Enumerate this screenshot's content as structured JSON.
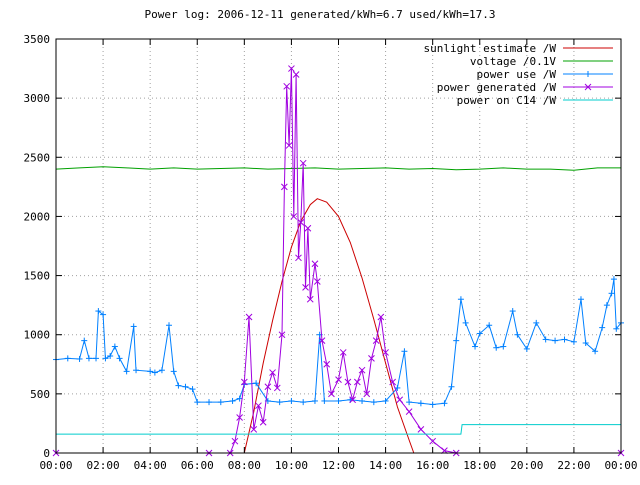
{
  "chart_data": {
    "type": "line",
    "title": "Power log: 2006-12-11 generated/kWh=6.7 used/kWh=17.3",
    "xlabel": "",
    "ylabel": "",
    "xlim": [
      0,
      24
    ],
    "ylim": [
      0,
      3500
    ],
    "x_ticks": [
      "00:00",
      "02:00",
      "04:00",
      "06:00",
      "08:00",
      "10:00",
      "12:00",
      "14:00",
      "16:00",
      "18:00",
      "20:00",
      "22:00",
      "00:00"
    ],
    "y_ticks": [
      "0",
      "500",
      "1000",
      "1500",
      "2000",
      "2500",
      "3000",
      "3500"
    ],
    "grid": true,
    "legend_position": "top-right",
    "series": [
      {
        "name": "sunlight estimate /W",
        "color": "#cc0000",
        "marker": "none",
        "points": [
          [
            8.0,
            0
          ],
          [
            8.4,
            350
          ],
          [
            8.8,
            760
          ],
          [
            9.2,
            1120
          ],
          [
            9.6,
            1450
          ],
          [
            10.0,
            1740
          ],
          [
            10.4,
            1960
          ],
          [
            10.8,
            2100
          ],
          [
            11.1,
            2150
          ],
          [
            11.5,
            2120
          ],
          [
            12.0,
            2000
          ],
          [
            12.5,
            1780
          ],
          [
            13.0,
            1480
          ],
          [
            13.5,
            1130
          ],
          [
            14.0,
            760
          ],
          [
            14.5,
            390
          ],
          [
            15.0,
            110
          ],
          [
            15.2,
            0
          ]
        ]
      },
      {
        "name": "voltage /0.1V",
        "color": "#00a000",
        "marker": "none",
        "points": [
          [
            0,
            2400
          ],
          [
            1,
            2410
          ],
          [
            2,
            2420
          ],
          [
            3,
            2410
          ],
          [
            4,
            2400
          ],
          [
            5,
            2410
          ],
          [
            6,
            2400
          ],
          [
            7,
            2405
          ],
          [
            8,
            2410
          ],
          [
            9,
            2400
          ],
          [
            10,
            2405
          ],
          [
            11,
            2410
          ],
          [
            12,
            2400
          ],
          [
            13,
            2405
          ],
          [
            14,
            2410
          ],
          [
            15,
            2400
          ],
          [
            16,
            2405
          ],
          [
            17,
            2395
          ],
          [
            18,
            2400
          ],
          [
            19,
            2410
          ],
          [
            20,
            2400
          ],
          [
            21,
            2400
          ],
          [
            22,
            2390
          ],
          [
            23,
            2410
          ],
          [
            24,
            2410
          ]
        ]
      },
      {
        "name": "power use /W",
        "color": "#0080ff",
        "marker": "+",
        "points": [
          [
            0,
            790
          ],
          [
            0.5,
            800
          ],
          [
            1.0,
            795
          ],
          [
            1.2,
            950
          ],
          [
            1.4,
            800
          ],
          [
            1.7,
            800
          ],
          [
            1.8,
            1200
          ],
          [
            2.0,
            1170
          ],
          [
            2.1,
            800
          ],
          [
            2.3,
            820
          ],
          [
            2.5,
            900
          ],
          [
            2.7,
            800
          ],
          [
            3.0,
            690
          ],
          [
            3.3,
            1070
          ],
          [
            3.4,
            700
          ],
          [
            4.0,
            690
          ],
          [
            4.2,
            680
          ],
          [
            4.5,
            700
          ],
          [
            4.8,
            1080
          ],
          [
            5.0,
            690
          ],
          [
            5.2,
            570
          ],
          [
            5.5,
            560
          ],
          [
            5.8,
            540
          ],
          [
            6.0,
            430
          ],
          [
            6.5,
            430
          ],
          [
            7.0,
            430
          ],
          [
            7.5,
            440
          ],
          [
            7.8,
            460
          ],
          [
            8.0,
            580
          ],
          [
            8.5,
            590
          ],
          [
            9.0,
            440
          ],
          [
            9.5,
            430
          ],
          [
            10.0,
            440
          ],
          [
            10.5,
            430
          ],
          [
            11.0,
            440
          ],
          [
            11.2,
            1000
          ],
          [
            11.4,
            440
          ],
          [
            12.0,
            440
          ],
          [
            12.5,
            450
          ],
          [
            13.0,
            440
          ],
          [
            13.5,
            430
          ],
          [
            14.0,
            440
          ],
          [
            14.5,
            550
          ],
          [
            14.8,
            860
          ],
          [
            15.0,
            430
          ],
          [
            15.5,
            420
          ],
          [
            16.0,
            410
          ],
          [
            16.5,
            420
          ],
          [
            16.8,
            560
          ],
          [
            17.0,
            950
          ],
          [
            17.2,
            1300
          ],
          [
            17.4,
            1100
          ],
          [
            17.8,
            900
          ],
          [
            18.0,
            1010
          ],
          [
            18.4,
            1080
          ],
          [
            18.7,
            890
          ],
          [
            19.0,
            900
          ],
          [
            19.4,
            1200
          ],
          [
            19.6,
            1000
          ],
          [
            20.0,
            880
          ],
          [
            20.4,
            1100
          ],
          [
            20.8,
            960
          ],
          [
            21.2,
            950
          ],
          [
            21.6,
            960
          ],
          [
            22.0,
            940
          ],
          [
            22.3,
            1300
          ],
          [
            22.5,
            930
          ],
          [
            22.9,
            860
          ],
          [
            23.2,
            1060
          ],
          [
            23.4,
            1250
          ],
          [
            23.6,
            1350
          ],
          [
            23.7,
            1470
          ],
          [
            23.8,
            1050
          ],
          [
            24.0,
            1100
          ]
        ]
      },
      {
        "name": "power generated /W",
        "color": "#a000e0",
        "marker": "x",
        "points": [
          [
            0,
            0
          ],
          [
            6.5,
            0
          ],
          [
            7.4,
            0
          ],
          [
            7.6,
            100
          ],
          [
            7.8,
            300
          ],
          [
            8.0,
            600
          ],
          [
            8.2,
            1150
          ],
          [
            8.4,
            200
          ],
          [
            8.6,
            400
          ],
          [
            8.8,
            260
          ],
          [
            9.0,
            560
          ],
          [
            9.2,
            680
          ],
          [
            9.4,
            550
          ],
          [
            9.6,
            1000
          ],
          [
            9.7,
            2250
          ],
          [
            9.8,
            3100
          ],
          [
            9.9,
            2600
          ],
          [
            10.0,
            3250
          ],
          [
            10.1,
            2000
          ],
          [
            10.2,
            3200
          ],
          [
            10.3,
            1650
          ],
          [
            10.4,
            1950
          ],
          [
            10.5,
            2450
          ],
          [
            10.6,
            1400
          ],
          [
            10.7,
            1900
          ],
          [
            10.8,
            1300
          ],
          [
            11.0,
            1600
          ],
          [
            11.1,
            1450
          ],
          [
            11.3,
            950
          ],
          [
            11.5,
            750
          ],
          [
            11.7,
            500
          ],
          [
            12.0,
            620
          ],
          [
            12.2,
            850
          ],
          [
            12.4,
            600
          ],
          [
            12.6,
            450
          ],
          [
            12.8,
            600
          ],
          [
            13.0,
            700
          ],
          [
            13.2,
            500
          ],
          [
            13.4,
            800
          ],
          [
            13.6,
            950
          ],
          [
            13.8,
            1150
          ],
          [
            14.0,
            850
          ],
          [
            14.3,
            600
          ],
          [
            14.6,
            450
          ],
          [
            15.0,
            350
          ],
          [
            15.5,
            200
          ],
          [
            16.0,
            100
          ],
          [
            16.5,
            20
          ],
          [
            17.0,
            0
          ],
          [
            24.0,
            0
          ]
        ]
      },
      {
        "name": "power on C14 /W",
        "color": "#00cccc",
        "marker": "none",
        "points": [
          [
            0,
            160
          ],
          [
            8.0,
            160
          ],
          [
            16.0,
            160
          ],
          [
            17.2,
            160
          ],
          [
            17.25,
            240
          ],
          [
            24.0,
            240
          ]
        ]
      }
    ]
  }
}
